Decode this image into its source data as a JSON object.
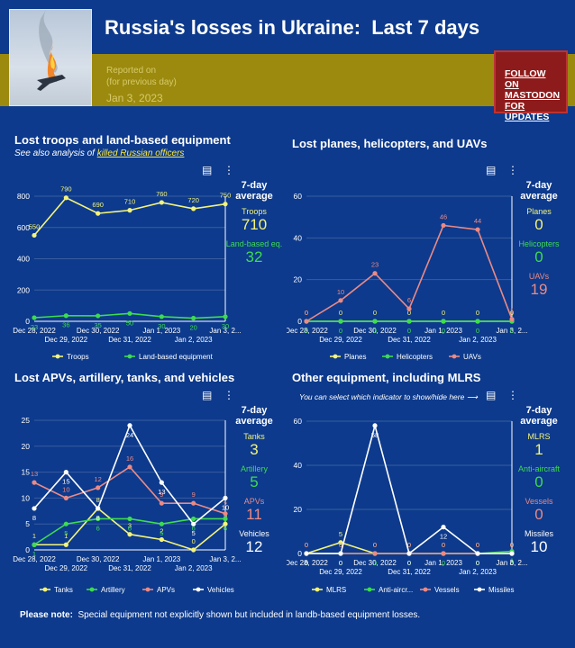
{
  "header": {
    "title": "Russia's losses in Ukraine:  Last 7 days",
    "reported_line1": "Reported on",
    "reported_line2": "(for previous day)",
    "reported_date": "Jan 3, 2023",
    "follow_line1": "FOLLOW ON",
    "follow_line2": "MASTODON",
    "follow_line3": "FOR UPDATES"
  },
  "avg_title_1": "7-day",
  "avg_title_2": "average",
  "x_dates": [
    "Dec 28, 2022",
    "Dec 29, 2022",
    "Dec 30, 2022",
    "Dec 31, 2022",
    "Jan 1, 2023",
    "Jan 2, 2023",
    "Jan 3, 2..."
  ],
  "other_hint": "You can select which indicator to show/hide here",
  "note_bold": "Please note:",
  "note_text": "Special equipment not explicitly shown but included in landb-based equipment losses.",
  "chart_data": [
    {
      "id": "troops",
      "type": "line",
      "title": "Lost troops and land-based equipment",
      "subtitle_prefix": "See also analysis of ",
      "subtitle_link": "killed Russian officers",
      "ylim": [
        0,
        800
      ],
      "yticks": [
        0,
        200,
        400,
        600,
        800
      ],
      "series": [
        {
          "name": "Troops",
          "color": "#f4f47a",
          "values": [
            550,
            790,
            690,
            710,
            760,
            720,
            750
          ]
        },
        {
          "name": "Land-based equipment",
          "color": "#3ddc50",
          "values": [
            23,
            36,
            35,
            50,
            30,
            20,
            30
          ]
        }
      ],
      "averages": [
        {
          "label": "Troops",
          "value": "710",
          "color": "#f4f47a"
        },
        {
          "label": "Land-based eq.",
          "value": "32",
          "color": "#3ddc50"
        }
      ]
    },
    {
      "id": "air",
      "type": "line",
      "title": "Lost planes, helicopters, and UAVs",
      "ylim": [
        0,
        60
      ],
      "yticks": [
        0,
        20,
        40,
        60
      ],
      "series": [
        {
          "name": "Planes",
          "color": "#f4f47a",
          "values": [
            0,
            0,
            0,
            0,
            0,
            0,
            0
          ]
        },
        {
          "name": "Helicopters",
          "color": "#3ddc50",
          "values": [
            0,
            0,
            0,
            0,
            0,
            0,
            0
          ]
        },
        {
          "name": "UAVs",
          "color": "#ea8a86",
          "values": [
            0,
            10,
            23,
            6,
            46,
            44,
            1
          ]
        }
      ],
      "averages": [
        {
          "label": "Planes",
          "value": "0",
          "color": "#f4f47a"
        },
        {
          "label": "Helicopters",
          "value": "0",
          "color": "#3ddc50"
        },
        {
          "label": "UAVs",
          "value": "19",
          "color": "#ea8a86"
        }
      ]
    },
    {
      "id": "apv",
      "type": "line",
      "title": "Lost APVs, artillery, tanks, and vehicles",
      "ylim": [
        0,
        25
      ],
      "yticks": [
        0,
        5,
        10,
        15,
        20,
        25
      ],
      "series": [
        {
          "name": "Tanks",
          "color": "#f4f47a",
          "values": [
            1,
            1,
            8,
            3,
            2,
            0,
            5
          ]
        },
        {
          "name": "Artillery",
          "color": "#3ddc50",
          "values": [
            1,
            5,
            6,
            6,
            5,
            6,
            6
          ]
        },
        {
          "name": "APVs",
          "color": "#ea8a86",
          "values": [
            13,
            10,
            12,
            16,
            9,
            9,
            7
          ]
        },
        {
          "name": "Vehicles",
          "color": "#ffffff",
          "values": [
            8,
            15,
            8,
            24,
            13,
            5,
            10
          ]
        }
      ],
      "averages": [
        {
          "label": "Tanks",
          "value": "3",
          "color": "#f4f47a"
        },
        {
          "label": "Artillery",
          "value": "5",
          "color": "#3ddc50"
        },
        {
          "label": "APVs",
          "value": "11",
          "color": "#ea8a86"
        },
        {
          "label": "Vehicles",
          "value": "12",
          "color": "#ffffff"
        }
      ]
    },
    {
      "id": "other",
      "type": "line",
      "title": "Other equipment, including MLRS",
      "ylim": [
        0,
        60
      ],
      "yticks": [
        0,
        20,
        40,
        60
      ],
      "series": [
        {
          "name": "MLRS",
          "color": "#f4f47a",
          "values": [
            0,
            5,
            0,
            0,
            0,
            0,
            0
          ]
        },
        {
          "name": "Anti-aircr...",
          "color": "#3ddc50",
          "values": [
            0,
            0,
            0,
            0,
            0,
            0,
            1
          ]
        },
        {
          "name": "Vessels",
          "color": "#ea8a86",
          "values": [
            0,
            0,
            0,
            0,
            0,
            0,
            0
          ]
        },
        {
          "name": "Missiles",
          "color": "#ffffff",
          "values": [
            0,
            0,
            58,
            0,
            12,
            0,
            0
          ]
        }
      ],
      "averages": [
        {
          "label": "MLRS",
          "value": "1",
          "color": "#f4f47a"
        },
        {
          "label": "Anti-aircraft",
          "value": "0",
          "color": "#3ddc50"
        },
        {
          "label": "Vessels",
          "value": "0",
          "color": "#ea8a86"
        },
        {
          "label": "Missiles",
          "value": "10",
          "color": "#ffffff"
        }
      ]
    }
  ]
}
